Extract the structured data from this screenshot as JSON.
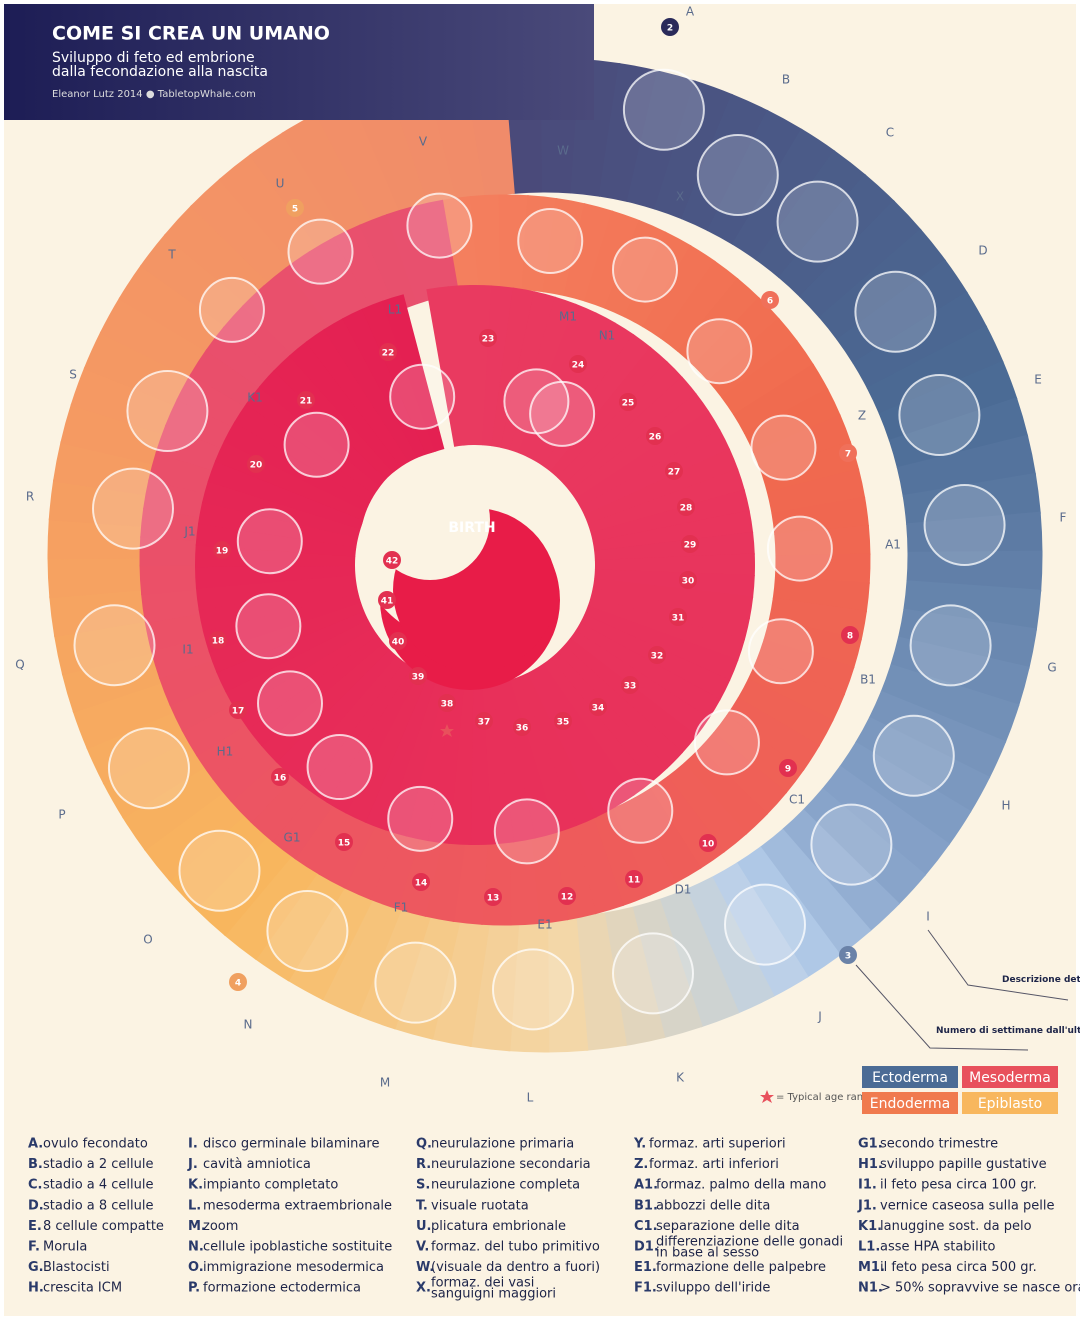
{
  "header": {
    "title": "COME SI CREA UN UMANO",
    "subtitle_lines": [
      "Sviluppo di feto ed embrione",
      "dalla fecondazione alla nascita"
    ],
    "credit": "Eleanor Lutz 2014 ● TabletopWhale.com"
  },
  "spiral": {
    "letters": [
      "A",
      "B",
      "C",
      "D",
      "E",
      "F",
      "G",
      "H",
      "I",
      "J",
      "K",
      "L",
      "M",
      "N",
      "O",
      "P",
      "Q",
      "R",
      "S",
      "T",
      "U",
      "V",
      "W",
      "X",
      "Y",
      "Z",
      "A1",
      "B1",
      "C1",
      "D1",
      "E1",
      "F1",
      "G1",
      "H1",
      "I1",
      "J1",
      "K1",
      "L1",
      "M1",
      "N1"
    ],
    "weeks": [
      2,
      3,
      4,
      5,
      6,
      7,
      8,
      9,
      10,
      11,
      12,
      13,
      14,
      15,
      16,
      17,
      18,
      19,
      20,
      21,
      22,
      23,
      24,
      25,
      26,
      27,
      28,
      29,
      30,
      31,
      32,
      33,
      34,
      35,
      36,
      37,
      38,
      39,
      40,
      41,
      42
    ],
    "center_label": "BIRTH"
  },
  "notes": {
    "detail": "Descrizione dettagliata in basso",
    "weeks": "Numero di settimane dall'ultimo ciclo mestruale",
    "birth_range": "= Typical age range at birth"
  },
  "layers": [
    {
      "name": "Ectoderma",
      "color": "#4b6b95"
    },
    {
      "name": "Mesoderma",
      "color": "#e8505c"
    },
    {
      "name": "Endoderma",
      "color": "#f07a4e"
    },
    {
      "name": "Epiblasto",
      "color": "#f8b75e"
    }
  ],
  "key": [
    {
      "key": "A.",
      "text": "ovulo fecondato"
    },
    {
      "key": "B.",
      "text": "stadio a 2 cellule"
    },
    {
      "key": "C.",
      "text": "stadio a 4 cellule"
    },
    {
      "key": "D.",
      "text": "stadio a 8 cellule"
    },
    {
      "key": "E.",
      "text": "8 cellule compatte"
    },
    {
      "key": "F.",
      "text": "Morula"
    },
    {
      "key": "G.",
      "text": "Blastocisti"
    },
    {
      "key": "H.",
      "text": "crescita ICM"
    },
    {
      "key": "I.",
      "text": "disco germinale bilaminare"
    },
    {
      "key": "J.",
      "text": "cavità amniotica"
    },
    {
      "key": "K.",
      "text": "impianto completato"
    },
    {
      "key": "L.",
      "text": "mesoderma extraembrionale"
    },
    {
      "key": "M.",
      "text": "zoom"
    },
    {
      "key": "N.",
      "text": "cellule ipoblastiche sostituite"
    },
    {
      "key": "O.",
      "text": "immigrazione mesodermica"
    },
    {
      "key": "P.",
      "text": "formazione ectodermica"
    },
    {
      "key": "Q.",
      "text": "neurulazione primaria"
    },
    {
      "key": "R.",
      "text": "neurulazione secondaria"
    },
    {
      "key": "S.",
      "text": "neurulazione completa"
    },
    {
      "key": "T.",
      "text": "visuale ruotata"
    },
    {
      "key": "U.",
      "text": "plicatura embrionale"
    },
    {
      "key": "V.",
      "text": "formaz. del tubo primitivo"
    },
    {
      "key": "W.",
      "text": "(visuale da dentro a fuori)"
    },
    {
      "key": "X.",
      "text": [
        "formaz. dei vasi",
        "sanguigni maggiori"
      ]
    },
    {
      "key": "Y.",
      "text": "formaz. arti superiori"
    },
    {
      "key": "Z.",
      "text": "formaz. arti inferiori"
    },
    {
      "key": "A1.",
      "text": "formaz. palmo della mano"
    },
    {
      "key": "B1.",
      "text": "abbozzi delle dita"
    },
    {
      "key": "C1.",
      "text": "separazione delle dita"
    },
    {
      "key": "D1.",
      "text": [
        "differenziazione delle gonadi",
        "in base al sesso"
      ]
    },
    {
      "key": "E1.",
      "text": "formazione delle palpebre"
    },
    {
      "key": "F1.",
      "text": "sviluppo dell'iride"
    },
    {
      "key": "G1.",
      "text": "secondo trimestre"
    },
    {
      "key": "H1.",
      "text": "sviluppo papille gustative"
    },
    {
      "key": "I1.",
      "text": "il feto pesa circa 100 gr."
    },
    {
      "key": "J1.",
      "text": "vernice caseosa sulla pelle"
    },
    {
      "key": "K1.",
      "text": "lanuggine sost. da pelo"
    },
    {
      "key": "L1.",
      "text": "asse HPA stabilito"
    },
    {
      "key": "M1.",
      "text": "il feto pesa circa 500 gr."
    },
    {
      "key": "N1.",
      "text": "> 50% sopravvive se nasce ora"
    }
  ]
}
